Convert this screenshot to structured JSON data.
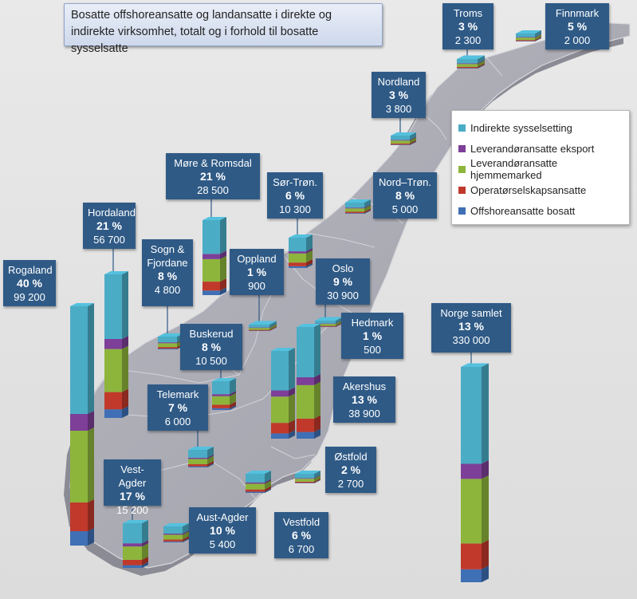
{
  "title": "Bosatte offshoreansatte og landansatte i direkte og indirekte virksomhet, totalt og i forhold til bosatte sysselsatte",
  "colors": {
    "indirekte": "#4bacc6",
    "eksport": "#7d3f98",
    "hjemmemarked": "#8db53c",
    "operator": "#c0392b",
    "offshore": "#3f6fb5",
    "label_bg": "#2f5a86",
    "map_fill": "#a9a9b2",
    "map_shadow": "#8a8a93"
  },
  "chart_data": {
    "type": "bar",
    "title": "Bosatte offshoreansatte og landansatte i direkte og indirekte virksomhet, totalt og i forhold til bosatte sysselsatte",
    "legend_placement": "right",
    "series": [
      {
        "key": "indirekte",
        "name": "Indirekte sysselsetting"
      },
      {
        "key": "eksport",
        "name": "Leverandøransatte eksport"
      },
      {
        "key": "hjemmemarked",
        "name": "Leverandøransatte hjemmemarked"
      },
      {
        "key": "operator",
        "name": "Operatørselskapsansatte"
      },
      {
        "key": "offshore",
        "name": "Offshoreansatte bosatt"
      }
    ],
    "regions": [
      {
        "name": "Troms",
        "pct": "3 %",
        "total": "2 300",
        "value": 2300
      },
      {
        "name": "Finnmark",
        "pct": "5 %",
        "total": "2 000",
        "value": 2000
      },
      {
        "name": "Nordland",
        "pct": "3 %",
        "total": "3 800",
        "value": 3800
      },
      {
        "name": "Møre & Romsdal",
        "pct": "21 %",
        "total": "28 500",
        "value": 28500
      },
      {
        "name": "Sør-Trøn.",
        "pct": "6 %",
        "total": "10 300",
        "value": 10300
      },
      {
        "name": "Nord–Trøn.",
        "pct": "8 %",
        "total": "5 000",
        "value": 5000
      },
      {
        "name": "Hordaland",
        "pct": "21 %",
        "total": "56 700",
        "value": 56700
      },
      {
        "name": "Sogn &\nFjordane",
        "pct": "8 %",
        "total": "4 800",
        "value": 4800
      },
      {
        "name": "Oppland",
        "pct": "1 %",
        "total": "900",
        "value": 900
      },
      {
        "name": "Oslo",
        "pct": "9 %",
        "total": "30 900",
        "value": 30900
      },
      {
        "name": "Rogaland",
        "pct": "40 %",
        "total": "99 200",
        "value": 99200
      },
      {
        "name": "Hedmark",
        "pct": "1 %",
        "total": "500",
        "value": 500
      },
      {
        "name": "Buskerud",
        "pct": "8 %",
        "total": "10 500",
        "value": 10500
      },
      {
        "name": "Akershus",
        "pct": "13 %",
        "total": "38 900",
        "value": 38900
      },
      {
        "name": "Telemark",
        "pct": "7 %",
        "total": "6 000",
        "value": 6000
      },
      {
        "name": "Østfold",
        "pct": "2 %",
        "total": "2 700",
        "value": 2700
      },
      {
        "name": "Vest-Agder",
        "pct": "17 %",
        "total": "15 200",
        "value": 15200
      },
      {
        "name": "Aust-Agder",
        "pct": "10 %",
        "total": "5 400",
        "value": 5400
      },
      {
        "name": "Vestfold",
        "pct": "6 %",
        "total": "6 700",
        "value": 6700
      },
      {
        "name": "Norge samlet",
        "pct": "13 %",
        "total": "330 000",
        "value": 330000
      }
    ]
  }
}
